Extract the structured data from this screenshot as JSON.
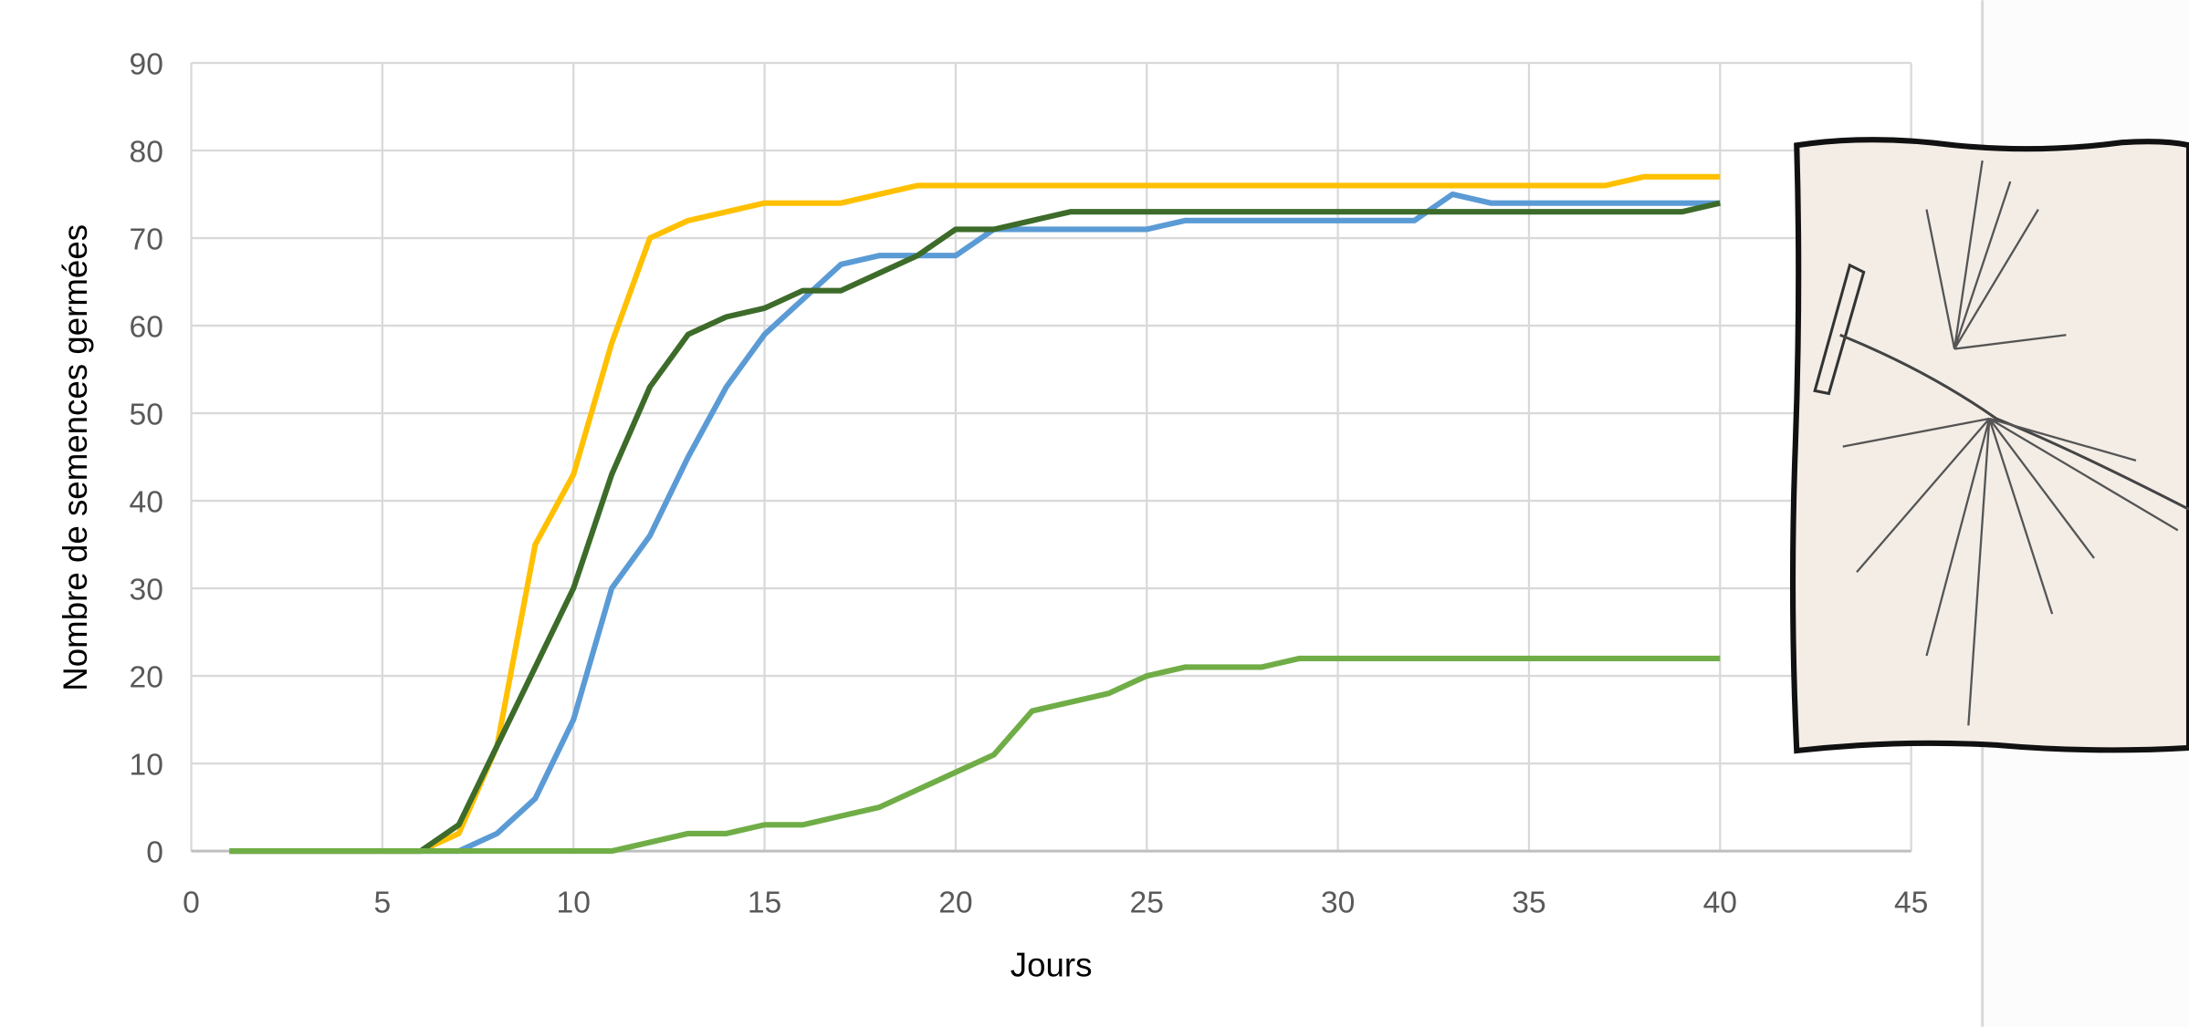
{
  "chart_data": {
    "type": "line",
    "x_label": "Jours",
    "y_label": "Nombre de semences germées",
    "x": [
      1,
      2,
      3,
      4,
      5,
      6,
      7,
      8,
      9,
      10,
      11,
      12,
      13,
      14,
      15,
      16,
      17,
      18,
      19,
      20,
      21,
      22,
      23,
      24,
      25,
      26,
      27,
      28,
      29,
      30,
      31,
      32,
      33,
      34,
      35,
      36,
      37,
      38,
      39,
      40
    ],
    "series": [
      {
        "color": "#ffc000",
        "values": [
          0,
          0,
          0,
          0,
          0,
          0,
          2,
          12,
          35,
          43,
          58,
          70,
          72,
          73,
          74,
          74,
          74,
          75,
          76,
          76,
          76,
          76,
          76,
          76,
          76,
          76,
          76,
          76,
          76,
          76,
          76,
          76,
          76,
          76,
          76,
          76,
          76,
          77,
          77,
          77
        ]
      },
      {
        "color": "#5b9bd5",
        "values": [
          0,
          0,
          0,
          0,
          0,
          0,
          0,
          2,
          6,
          15,
          30,
          36,
          45,
          53,
          59,
          63,
          67,
          68,
          68,
          68,
          71,
          71,
          71,
          71,
          71,
          72,
          72,
          72,
          72,
          72,
          72,
          72,
          75,
          74,
          74,
          74,
          74,
          74,
          74,
          74
        ]
      },
      {
        "color": "#3d6b2a",
        "values": [
          0,
          0,
          0,
          0,
          0,
          0,
          3,
          12,
          21,
          30,
          43,
          53,
          59,
          61,
          62,
          64,
          64,
          66,
          68,
          71,
          71,
          72,
          73,
          73,
          73,
          73,
          73,
          73,
          73,
          73,
          73,
          73,
          73,
          73,
          73,
          73,
          73,
          73,
          73,
          74
        ]
      },
      {
        "color": "#70ad47",
        "values": [
          0,
          0,
          0,
          0,
          0,
          0,
          0,
          0,
          0,
          0,
          0,
          1,
          2,
          2,
          3,
          3,
          4,
          5,
          7,
          9,
          11,
          16,
          17,
          18,
          20,
          21,
          21,
          21,
          22,
          22,
          22,
          22,
          22,
          22,
          22,
          22,
          22,
          22,
          22,
          22
        ]
      }
    ],
    "xlim": [
      0,
      45
    ],
    "xticks": [
      0,
      5,
      10,
      15,
      20,
      25,
      30,
      35,
      40,
      45
    ],
    "ylim": [
      0,
      90
    ],
    "yticks": [
      0,
      10,
      20,
      30,
      40,
      50,
      60,
      70,
      80,
      90
    ],
    "grid": true
  }
}
